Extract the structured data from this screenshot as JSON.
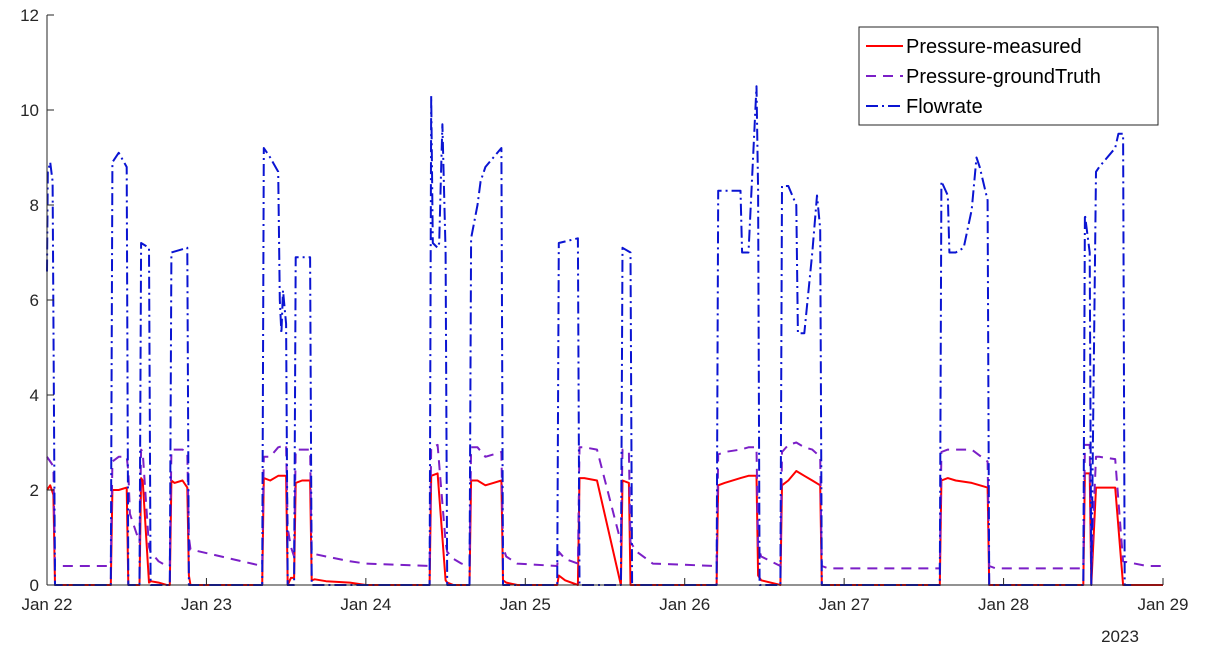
{
  "chart_data": {
    "type": "line",
    "title": "",
    "xlabel": "",
    "ylabel": "",
    "xlim": [
      0,
      7
    ],
    "ylim": [
      0,
      12
    ],
    "x_ticks": [
      {
        "value": 0,
        "label": "Jan 22"
      },
      {
        "value": 1,
        "label": "Jan 23"
      },
      {
        "value": 2,
        "label": "Jan 24"
      },
      {
        "value": 3,
        "label": "Jan 25"
      },
      {
        "value": 4,
        "label": "Jan 26"
      },
      {
        "value": 5,
        "label": "Jan 27"
      },
      {
        "value": 6,
        "label": "Jan 28"
      },
      {
        "value": 7,
        "label": "Jan 29"
      }
    ],
    "x_year_label": "2023",
    "y_ticks": [
      {
        "value": 0,
        "label": "0"
      },
      {
        "value": 2,
        "label": "2"
      },
      {
        "value": 4,
        "label": "4"
      },
      {
        "value": 6,
        "label": "6"
      },
      {
        "value": 8,
        "label": "8"
      },
      {
        "value": 10,
        "label": "10"
      },
      {
        "value": 12,
        "label": "12"
      }
    ],
    "grid": false,
    "legend_position": "top-right",
    "series": [
      {
        "name": "Pressure-measured",
        "color": "#ff0000",
        "dash": "solid",
        "x": [
          0,
          0.02,
          0.04,
          0.05,
          0.4,
          0.41,
          0.45,
          0.5,
          0.51,
          0.52,
          0.58,
          0.59,
          0.6,
          0.64,
          0.65,
          0.7,
          0.75,
          0.77,
          0.78,
          0.8,
          0.85,
          0.88,
          0.89,
          0.9,
          1.35,
          1.36,
          1.4,
          1.45,
          1.5,
          1.51,
          1.53,
          1.55,
          1.56,
          1.6,
          1.65,
          1.66,
          1.68,
          1.75,
          1.9,
          2.0,
          2.4,
          2.41,
          2.45,
          2.5,
          2.51,
          2.55,
          2.6,
          2.65,
          2.66,
          2.7,
          2.75,
          2.8,
          2.85,
          2.86,
          2.88,
          2.95,
          3.2,
          3.21,
          3.25,
          3.33,
          3.34,
          3.37,
          3.45,
          3.6,
          3.61,
          3.65,
          3.66,
          3.7,
          3.8,
          4.2,
          4.21,
          4.25,
          4.35,
          4.4,
          4.45,
          4.46,
          4.48,
          4.6,
          4.61,
          4.65,
          4.7,
          4.75,
          4.8,
          4.85,
          4.86,
          4.9,
          5.5,
          5.6,
          5.61,
          5.65,
          5.7,
          5.8,
          5.9,
          5.91,
          5.95,
          6.5,
          6.51,
          6.54,
          6.55,
          6.58,
          6.6,
          6.7,
          6.75,
          6.9,
          6.95,
          7.0
        ],
        "y": [
          2.0,
          2.1,
          1.9,
          0.0,
          0.0,
          2.0,
          2.0,
          2.05,
          0.0,
          0.0,
          0.0,
          2.25,
          2.2,
          0.05,
          0.08,
          0.05,
          0.0,
          0.0,
          2.2,
          2.15,
          2.2,
          2.05,
          0.2,
          0.0,
          0.0,
          2.25,
          2.2,
          2.3,
          2.3,
          0.0,
          0.15,
          0.15,
          2.15,
          2.2,
          2.2,
          0.1,
          0.12,
          0.08,
          0.05,
          0.0,
          0.0,
          2.3,
          2.35,
          0.1,
          0.05,
          0.0,
          0.0,
          0.0,
          2.2,
          2.2,
          2.1,
          2.15,
          2.2,
          0.1,
          0.05,
          0.0,
          0.0,
          0.2,
          0.1,
          0.0,
          2.25,
          2.25,
          2.2,
          0.0,
          2.2,
          2.15,
          0.0,
          0.0,
          0.0,
          0.0,
          2.1,
          2.15,
          2.25,
          2.3,
          2.3,
          0.2,
          0.1,
          0.0,
          2.1,
          2.2,
          2.4,
          2.3,
          2.2,
          2.1,
          0.0,
          0.0,
          0.0,
          0.0,
          2.2,
          2.25,
          2.2,
          2.15,
          2.05,
          0.0,
          0.0,
          0.0,
          2.35,
          2.35,
          0.0,
          2.05,
          2.05,
          2.05,
          0.0,
          0.0,
          0.0,
          0.0
        ]
      },
      {
        "name": "Pressure-groundTruth",
        "color": "#7b1fc7",
        "dash": "10,7",
        "x": [
          0,
          0.02,
          0.04,
          0.05,
          0.4,
          0.41,
          0.45,
          0.5,
          0.51,
          0.52,
          0.58,
          0.59,
          0.6,
          0.64,
          0.65,
          0.7,
          0.75,
          0.77,
          0.78,
          0.8,
          0.85,
          0.88,
          0.89,
          0.9,
          1.35,
          1.36,
          1.4,
          1.45,
          1.5,
          1.51,
          1.53,
          1.55,
          1.56,
          1.6,
          1.65,
          1.66,
          1.68,
          1.75,
          1.9,
          2.0,
          2.4,
          2.41,
          2.45,
          2.5,
          2.51,
          2.55,
          2.6,
          2.65,
          2.66,
          2.7,
          2.75,
          2.8,
          2.85,
          2.86,
          2.88,
          2.95,
          3.2,
          3.21,
          3.25,
          3.33,
          3.34,
          3.37,
          3.45,
          3.6,
          3.61,
          3.65,
          3.66,
          3.7,
          3.8,
          4.2,
          4.21,
          4.25,
          4.35,
          4.4,
          4.45,
          4.46,
          4.48,
          4.6,
          4.61,
          4.65,
          4.7,
          4.75,
          4.8,
          4.85,
          4.86,
          4.9,
          5.5,
          5.6,
          5.61,
          5.65,
          5.7,
          5.8,
          5.9,
          5.91,
          5.95,
          6.5,
          6.51,
          6.54,
          6.55,
          6.58,
          6.6,
          6.7,
          6.75,
          6.9,
          6.95,
          7.0
        ],
        "y": [
          2.7,
          2.6,
          2.5,
          0.4,
          0.4,
          2.6,
          2.7,
          2.7,
          2.4,
          1.5,
          0.9,
          2.85,
          2.8,
          0.8,
          0.7,
          0.5,
          0.4,
          0.4,
          2.85,
          2.85,
          2.85,
          2.8,
          1.0,
          0.75,
          0.4,
          2.7,
          2.7,
          2.9,
          2.95,
          1.2,
          0.8,
          0.6,
          2.85,
          2.85,
          2.85,
          0.7,
          0.65,
          0.6,
          0.5,
          0.45,
          0.4,
          2.9,
          2.95,
          0.9,
          0.7,
          0.55,
          0.45,
          0.4,
          2.9,
          2.9,
          2.7,
          2.75,
          2.8,
          0.8,
          0.6,
          0.45,
          0.4,
          0.7,
          0.55,
          0.45,
          2.9,
          2.9,
          2.85,
          0.9,
          2.85,
          2.8,
          0.9,
          0.7,
          0.45,
          0.4,
          2.75,
          2.8,
          2.85,
          2.9,
          2.9,
          0.8,
          0.6,
          0.4,
          2.8,
          2.95,
          3.0,
          2.9,
          2.85,
          2.7,
          0.4,
          0.35,
          0.35,
          0.35,
          2.8,
          2.85,
          2.85,
          2.85,
          2.6,
          0.4,
          0.35,
          0.35,
          2.95,
          2.95,
          0.35,
          2.7,
          2.7,
          2.65,
          0.5,
          0.4,
          0.4,
          0.4
        ]
      },
      {
        "name": "Flowrate",
        "color": "#0a14d2",
        "dash": "12,4,2,4",
        "x": [
          0,
          0.005,
          0.02,
          0.035,
          0.05,
          0.06,
          0.4,
          0.41,
          0.45,
          0.5,
          0.51,
          0.52,
          0.58,
          0.59,
          0.64,
          0.65,
          0.77,
          0.78,
          0.88,
          0.89,
          1.35,
          1.36,
          1.4,
          1.45,
          1.46,
          1.47,
          1.48,
          1.5,
          1.51,
          1.55,
          1.56,
          1.6,
          1.65,
          1.66,
          2.4,
          2.41,
          2.42,
          2.45,
          2.46,
          2.47,
          2.48,
          2.5,
          2.51,
          2.65,
          2.66,
          2.7,
          2.72,
          2.75,
          2.8,
          2.85,
          2.86,
          3.2,
          3.21,
          3.33,
          3.34,
          3.37,
          3.4,
          3.45,
          3.46,
          3.6,
          3.61,
          3.66,
          3.67,
          4.2,
          4.21,
          4.35,
          4.36,
          4.4,
          4.45,
          4.46,
          4.47,
          4.48,
          4.5,
          4.6,
          4.61,
          4.65,
          4.7,
          4.71,
          4.75,
          4.8,
          4.83,
          4.85,
          4.86,
          4.9,
          5.6,
          5.61,
          5.65,
          5.66,
          5.7,
          5.75,
          5.8,
          5.83,
          5.85,
          5.9,
          5.91,
          6.5,
          6.51,
          6.54,
          6.55,
          6.58,
          6.6,
          6.7,
          6.72,
          6.75,
          6.76,
          6.8
        ],
        "y": [
          6.6,
          8.7,
          8.9,
          8.5,
          0.0,
          0.0,
          0.0,
          8.9,
          9.1,
          8.8,
          0.0,
          0.0,
          0.0,
          7.2,
          7.1,
          0.0,
          0.0,
          7.0,
          7.1,
          0.0,
          0.0,
          9.2,
          9.0,
          8.7,
          6.0,
          5.3,
          6.2,
          5.5,
          0.0,
          0.0,
          6.9,
          6.9,
          6.9,
          0.0,
          0.0,
          10.3,
          7.2,
          7.1,
          7.2,
          8.5,
          9.7,
          7.0,
          0.0,
          0.0,
          7.3,
          8.0,
          8.5,
          8.8,
          9.0,
          9.2,
          0.0,
          0.0,
          7.2,
          7.3,
          0.0,
          0.0,
          0.0,
          0.0,
          0.0,
          0.0,
          7.1,
          7.0,
          0.0,
          0.0,
          8.3,
          8.3,
          7.0,
          7.0,
          10.5,
          8.3,
          0.0,
          0.0,
          0.0,
          0.0,
          8.4,
          8.4,
          8.0,
          5.3,
          5.3,
          7.0,
          8.2,
          7.5,
          0.0,
          0.0,
          0.0,
          8.5,
          8.2,
          7.0,
          7.0,
          7.1,
          7.9,
          9.0,
          8.8,
          8.1,
          0.0,
          0.0,
          7.8,
          7.0,
          0.0,
          8.7,
          8.8,
          9.2,
          9.5,
          9.5,
          0.0,
          0.0
        ]
      }
    ]
  }
}
